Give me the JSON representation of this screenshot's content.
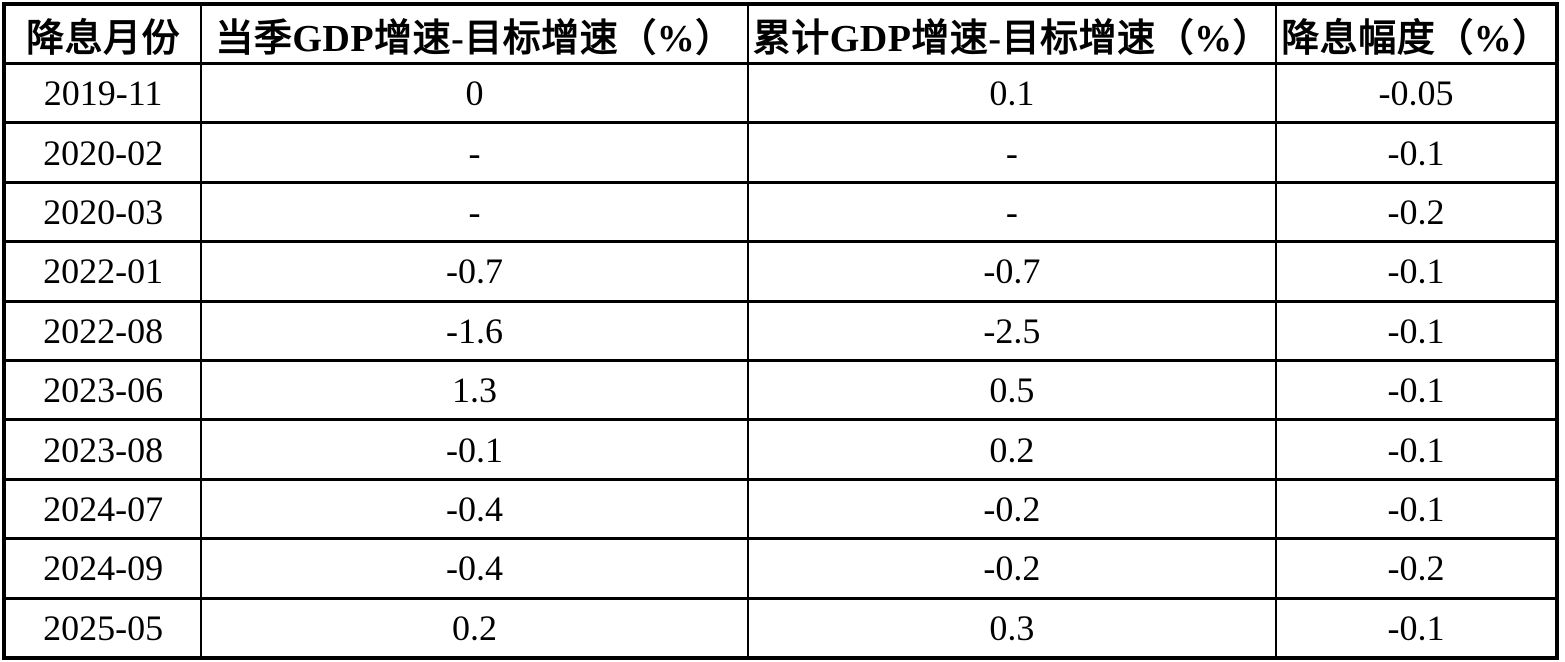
{
  "colors": {
    "background": "#ffffff",
    "border": "#000000",
    "text": "#000000"
  },
  "chart_data": {
    "type": "table",
    "title": "",
    "columns": [
      "降息月份",
      "当季GDP增速-目标增速（%）",
      "累计GDP增速-目标增速（%）",
      "降息幅度（%）"
    ],
    "rows": [
      [
        "2019-11",
        "0",
        "0.1",
        "-0.05"
      ],
      [
        "2020-02",
        "-",
        "-",
        "-0.1"
      ],
      [
        "2020-03",
        "-",
        "-",
        "-0.2"
      ],
      [
        "2022-01",
        "-0.7",
        "-0.7",
        "-0.1"
      ],
      [
        "2022-08",
        "-1.6",
        "-2.5",
        "-0.1"
      ],
      [
        "2023-06",
        "1.3",
        "0.5",
        "-0.1"
      ],
      [
        "2023-08",
        "-0.1",
        "0.2",
        "-0.1"
      ],
      [
        "2024-07",
        "-0.4",
        "-0.2",
        "-0.1"
      ],
      [
        "2024-09",
        "-0.4",
        "-0.2",
        "-0.2"
      ],
      [
        "2025-05",
        "0.2",
        "0.3",
        "-0.1"
      ]
    ]
  }
}
